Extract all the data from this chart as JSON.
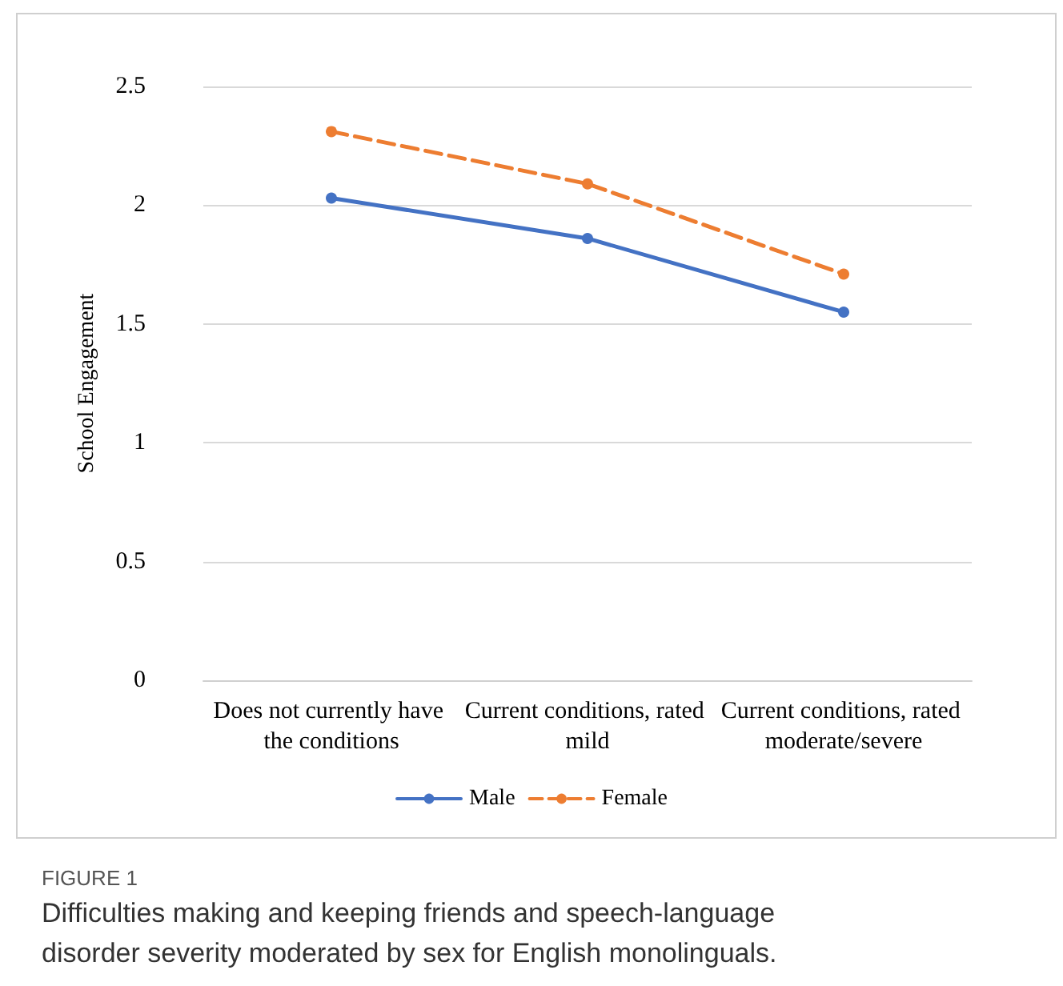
{
  "chart_data": {
    "type": "line",
    "ylabel": "School Engagement",
    "categories": [
      "Does not currently have the conditions",
      "Current conditions, rated mild",
      "Current conditions, rated moderate/severe"
    ],
    "series": [
      {
        "name": "Male",
        "color": "#4472c4",
        "values": [
          2.03,
          1.86,
          1.55
        ],
        "line_style": "solid"
      },
      {
        "name": "Female",
        "color": "#ed7d31",
        "values": [
          2.31,
          2.09,
          1.71
        ],
        "line_style": "dashed"
      }
    ],
    "ylim": [
      0,
      2.5
    ],
    "yticks": [
      0,
      0.5,
      1,
      1.5,
      2,
      2.5
    ],
    "grid": "y",
    "legend": "bottom",
    "marker": "circle",
    "annotations": [
      "FIGURE 1",
      "Difficulties making and keeping friends and speech-language disorder severity moderated by sex for English monolinguals."
    ]
  }
}
